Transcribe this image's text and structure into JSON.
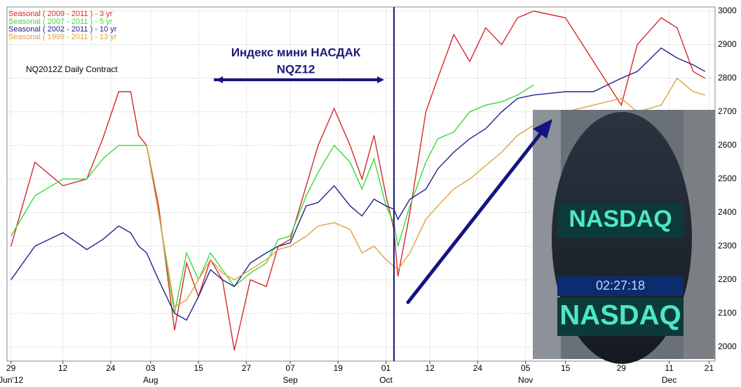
{
  "chart_data": {
    "type": "line",
    "subtitle": "NQ2012Z Daily Contract",
    "annotation": [
      "Индекс мини НАСДАК",
      "NQZ12"
    ],
    "image_texts": [
      "NASDAQ",
      "02:27:18",
      "NASDAQ"
    ],
    "x": [
      0,
      6,
      13,
      19,
      23,
      27,
      30,
      32,
      34,
      37,
      41,
      44,
      47,
      50,
      53,
      56,
      60,
      64,
      67,
      70,
      74,
      77,
      81,
      85,
      88,
      91,
      94,
      96,
      97,
      100,
      104,
      107,
      111,
      115,
      119,
      123,
      127,
      131,
      139,
      146,
      153,
      157,
      163,
      167,
      171,
      174
    ],
    "series": [
      {
        "name": "Seasonal ( 2009 - 2011 ) - 3 yr",
        "color": "#d62828",
        "values": [
          2300,
          2550,
          2480,
          2500,
          2620,
          2760,
          2760,
          2630,
          2600,
          2420,
          2050,
          2250,
          2150,
          2260,
          2200,
          1990,
          2200,
          2180,
          2300,
          2320,
          2480,
          2600,
          2710,
          2600,
          2500,
          2630,
          2450,
          2350,
          2210,
          2400,
          2700,
          2800,
          2930,
          2850,
          2950,
          2900,
          2980,
          3000,
          2980,
          2850,
          2720,
          2900,
          2980,
          2950,
          2820,
          2800
        ]
      },
      {
        "name": "Seasonal ( 2007 - 2011 ) - 5 yr",
        "color": "#3cd83c",
        "values": [
          2330,
          2450,
          2500,
          2500,
          2560,
          2600,
          2600,
          2600,
          2600,
          2400,
          2100,
          2280,
          2200,
          2280,
          2230,
          2180,
          2220,
          2250,
          2320,
          2330,
          2450,
          2520,
          2600,
          2550,
          2470,
          2560,
          2420,
          2370,
          2300,
          2420,
          2550,
          2620,
          2640,
          2700,
          2720,
          2730,
          2750,
          2780,
          null,
          null,
          null,
          2720,
          null,
          null,
          null,
          null
        ]
      },
      {
        "name": "Seasonal ( 2002 - 2011 ) - 10 yr",
        "color": "#22228c",
        "values": [
          2200,
          2300,
          2340,
          2290,
          2320,
          2360,
          2340,
          2300,
          2280,
          2200,
          2100,
          2080,
          2150,
          2230,
          2200,
          2180,
          2250,
          2280,
          2300,
          2310,
          2420,
          2430,
          2480,
          2420,
          2390,
          2440,
          2420,
          2410,
          2380,
          2440,
          2470,
          2530,
          2580,
          2620,
          2650,
          2700,
          2740,
          2750,
          2760,
          2760,
          2800,
          2820,
          2890,
          2860,
          2840,
          2820
        ]
      },
      {
        "name": "Seasonal ( 1999 - 2011 ) - 13 yr",
        "color": "#e0a040",
        "values": [
          null,
          null,
          null,
          null,
          null,
          null,
          null,
          null,
          2600,
          2400,
          2120,
          2140,
          2200,
          2260,
          2220,
          2200,
          2230,
          2260,
          2290,
          2300,
          2330,
          2360,
          2370,
          2350,
          2280,
          2300,
          2260,
          2240,
          2230,
          2280,
          2380,
          2420,
          2470,
          2500,
          2540,
          2580,
          2630,
          2660,
          2700,
          2720,
          2740,
          2700,
          2720,
          2800,
          2760,
          2750
        ]
      }
    ],
    "xlim": [
      -1,
      176.5
    ],
    "xticks": [
      {
        "value": 0,
        "label": "29"
      },
      {
        "value": 13,
        "label": "12"
      },
      {
        "value": 25,
        "label": "24"
      },
      {
        "value": 35,
        "label": "03"
      },
      {
        "value": 47,
        "label": "15"
      },
      {
        "value": 59,
        "label": "27"
      },
      {
        "value": 70,
        "label": "07"
      },
      {
        "value": 82,
        "label": "19"
      },
      {
        "value": 94,
        "label": "01"
      },
      {
        "value": 105,
        "label": "12"
      },
      {
        "value": 117,
        "label": "24"
      },
      {
        "value": 129,
        "label": "05"
      },
      {
        "value": 139,
        "label": "15"
      },
      {
        "value": 153,
        "label": "29"
      },
      {
        "value": 165,
        "label": "11"
      },
      {
        "value": 175,
        "label": "21"
      }
    ],
    "x_months": [
      {
        "value": 0,
        "label": "Jun'12"
      },
      {
        "value": 35,
        "label": "Aug"
      },
      {
        "value": 70,
        "label": "Sep"
      },
      {
        "value": 94,
        "label": "Oct"
      },
      {
        "value": 129,
        "label": "Nov"
      },
      {
        "value": 165,
        "label": "Dec"
      }
    ],
    "ylim": [
      1958,
      3012
    ],
    "yticks": [
      2000,
      2100,
      2200,
      2300,
      2400,
      2500,
      2600,
      2700,
      2800,
      2900,
      3000
    ],
    "grid": true,
    "marker_x": 96
  }
}
